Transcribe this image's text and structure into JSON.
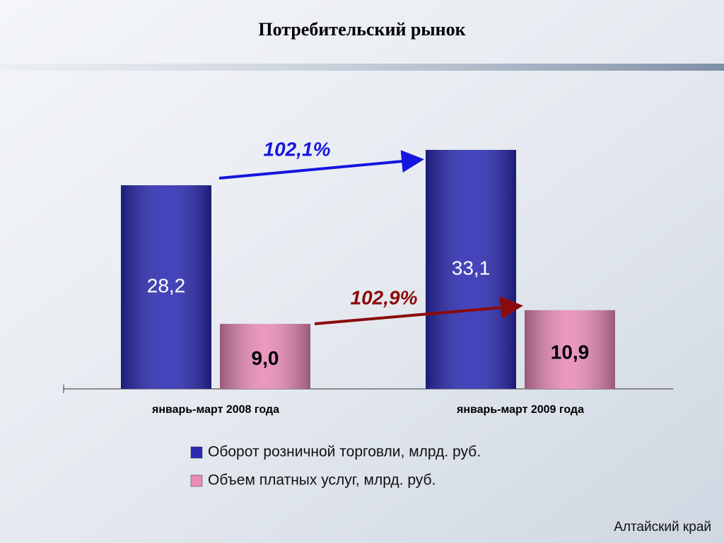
{
  "chart_data": {
    "type": "bar",
    "title": "Потребительский рынок",
    "categories": [
      "январь-март 2008 года",
      "январь-март 2009 года"
    ],
    "series": [
      {
        "name": "Оборот розничной торговли, млрд. руб.",
        "color": "#2a2ab4",
        "label_color": "#ffffff",
        "values": [
          28.2,
          33.1
        ],
        "value_labels": [
          "28,2",
          "33,1"
        ]
      },
      {
        "name": "Объем платных услуг, млрд. руб.",
        "color": "#e98ab8",
        "label_color": "#000000",
        "values": [
          9.0,
          10.9
        ],
        "value_labels": [
          "9,0",
          "10,9"
        ]
      }
    ],
    "ylim": [
      0,
      35
    ],
    "annotations": [
      {
        "text": "102,1%",
        "color": "#1515e0"
      },
      {
        "text": "102,9%",
        "color": "#8b0a0a"
      }
    ],
    "footer": "Алтайский край"
  }
}
